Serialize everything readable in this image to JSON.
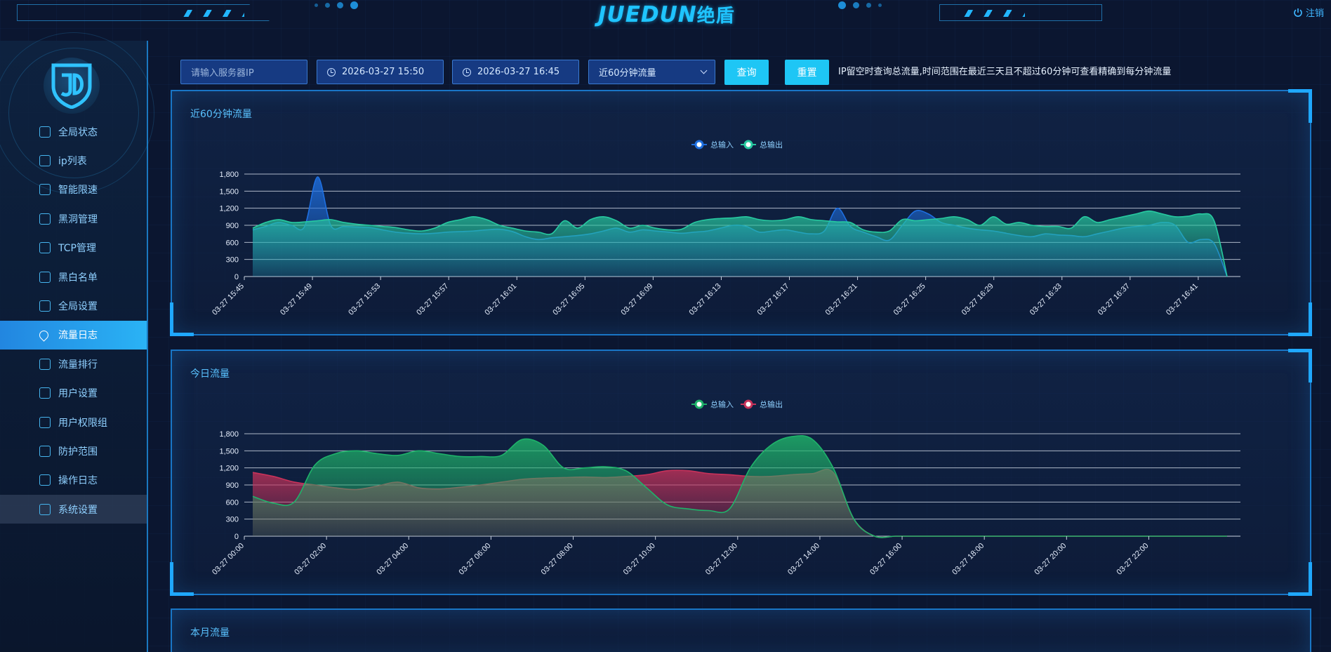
{
  "header": {
    "logo_text": "JUEDUN",
    "logo_cn": "绝盾",
    "logout_label": "注销",
    "colors": {
      "accent": "#1fc4ff",
      "frame": "#1f6fa8"
    }
  },
  "sidebar": {
    "items": [
      {
        "label": "全局状态",
        "icon": "dashboard-icon"
      },
      {
        "label": "ip列表",
        "icon": "ip-list-icon"
      },
      {
        "label": "智能限速",
        "icon": "speedometer-icon"
      },
      {
        "label": "黑洞管理",
        "icon": "blackhole-icon"
      },
      {
        "label": "TCP管理",
        "icon": "tcp-icon"
      },
      {
        "label": "黑白名单",
        "icon": "checklist-icon"
      },
      {
        "label": "全局设置",
        "icon": "settings-file-icon"
      },
      {
        "label": "流量日志",
        "icon": "drop-icon",
        "active": true
      },
      {
        "label": "流量排行",
        "icon": "drop-icon"
      },
      {
        "label": "用户设置",
        "icon": "user-gear-icon"
      },
      {
        "label": "用户权限组",
        "icon": "user-group-icon"
      },
      {
        "label": "防护范围",
        "icon": "shield-icon"
      },
      {
        "label": "操作日志",
        "icon": "log-edit-icon"
      },
      {
        "label": "系统设置",
        "icon": "gear-icon",
        "hover": true
      }
    ],
    "active_color": "#2ab3f5"
  },
  "toolbar": {
    "ip_placeholder": "请输入服务器IP",
    "start_time": "2026-03-27 15:50",
    "end_time": "2026-03-27 16:45",
    "range_select": "近60分钟流量",
    "query_label": "查询",
    "reset_label": "重置",
    "hint": "IP留空时查询总流量,时间范围在最近三天且不超过60分钟可查看精确到每分钟流量"
  },
  "panels": {
    "p1_title": "近60分钟流量",
    "p2_title": "今日流量",
    "p3_title": "本月流量"
  },
  "chart_data": [
    {
      "type": "area",
      "title": "近60分钟流量",
      "ylim": [
        0,
        1800
      ],
      "yticks": [
        0,
        300,
        600,
        900,
        1200,
        1500,
        1800
      ],
      "grid": true,
      "legend_position": "top-center",
      "x_tick_labels": [
        "03-27 15:45",
        "03-27 15:49",
        "03-27 15:53",
        "03-27 15:57",
        "03-27 16:01",
        "03-27 16:05",
        "03-27 16:09",
        "03-27 16:13",
        "03-27 16:17",
        "03-27 16:21",
        "03-27 16:25",
        "03-27 16:29",
        "03-27 16:33",
        "03-27 16:37",
        "03-27 16:41"
      ],
      "series": [
        {
          "name": "总输入",
          "color": "#1e6fe0",
          "values": [
            820,
            880,
            950,
            900,
            880,
            1750,
            900,
            880,
            870,
            860,
            820,
            780,
            760,
            750,
            760,
            780,
            790,
            800,
            820,
            830,
            790,
            700,
            650,
            680,
            700,
            720,
            750,
            800,
            850,
            780,
            820,
            800,
            780,
            760,
            780,
            800,
            850,
            900,
            880,
            780,
            800,
            820,
            780,
            750,
            800,
            1200,
            880,
            780,
            700,
            640,
            900,
            1150,
            1100,
            950,
            900,
            850,
            820,
            800,
            760,
            720,
            700,
            750,
            730,
            720,
            700,
            750,
            800,
            850,
            880,
            900,
            950,
            900,
            600,
            650,
            580,
            0
          ]
        },
        {
          "name": "总输出",
          "color": "#27c9a0",
          "values": [
            850,
            950,
            1000,
            950,
            960,
            980,
            1000,
            950,
            920,
            900,
            880,
            860,
            820,
            800,
            850,
            950,
            1000,
            1050,
            1000,
            900,
            850,
            800,
            780,
            750,
            980,
            850,
            1000,
            1050,
            980,
            850,
            900,
            850,
            820,
            830,
            950,
            1000,
            1020,
            1030,
            1050,
            1000,
            980,
            1000,
            1050,
            1000,
            980,
            960,
            950,
            820,
            780,
            800,
            1000,
            980,
            1000,
            1020,
            1050,
            1000,
            900,
            1050,
            920,
            950,
            900,
            880,
            880,
            850,
            1050,
            950,
            1000,
            1050,
            1100,
            1150,
            1100,
            1050,
            1060,
            1100,
            980,
            0
          ]
        }
      ]
    },
    {
      "type": "area",
      "title": "今日流量",
      "ylim": [
        0,
        1800
      ],
      "yticks": [
        0,
        300,
        600,
        900,
        1200,
        1500,
        1800
      ],
      "grid": true,
      "legend_position": "top-center",
      "x_tick_labels": [
        "03-27 00:00",
        "03-27 02:00",
        "03-27 04:00",
        "03-27 06:00",
        "03-27 08:00",
        "03-27 10:00",
        "03-27 12:00",
        "03-27 14:00",
        "03-27 16:00",
        "03-27 18:00",
        "03-27 20:00",
        "03-27 22:00"
      ],
      "series": [
        {
          "name": "总输入",
          "color": "#1fb36a",
          "values": [
            700,
            580,
            600,
            1250,
            1450,
            1500,
            1450,
            1420,
            1500,
            1450,
            1400,
            1400,
            1420,
            1700,
            1600,
            1200,
            1200,
            1220,
            1150,
            850,
            550,
            480,
            450,
            480,
            1200,
            1600,
            1750,
            1700,
            1200,
            300,
            0,
            0,
            0,
            0,
            0,
            0,
            0,
            0,
            0,
            0,
            0,
            0,
            0,
            0,
            0,
            0,
            0,
            0
          ]
        },
        {
          "name": "总输出",
          "color": "#c8325a",
          "values": [
            1120,
            1050,
            950,
            900,
            850,
            820,
            880,
            950,
            850,
            830,
            860,
            900,
            950,
            1000,
            1020,
            1030,
            1040,
            1030,
            1050,
            1080,
            1150,
            1150,
            1100,
            1080,
            1050,
            1050,
            1080,
            1100,
            1120,
            300,
            0,
            0,
            0,
            0,
            0,
            0,
            0,
            0,
            0,
            0,
            0,
            0,
            0,
            0,
            0,
            0,
            0,
            0
          ]
        }
      ]
    }
  ]
}
